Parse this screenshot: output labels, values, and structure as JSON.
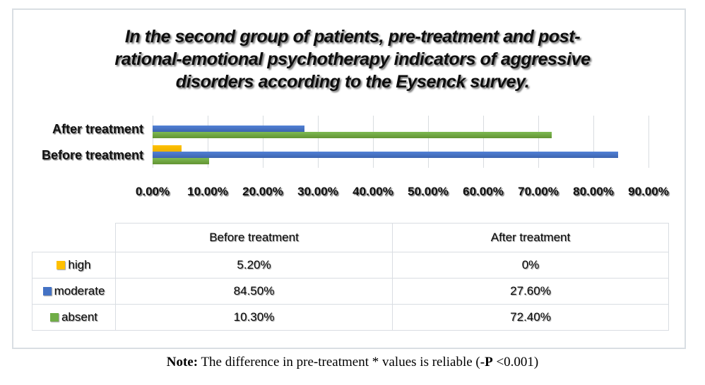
{
  "title": "In the second group of patients, pre-treatment and post-\nrational-emotional psychotherapy indicators of aggressive\ndisorders according to the Eysenck survey.",
  "chart_data": {
    "type": "bar",
    "orientation": "horizontal",
    "title": "In the second group of patients, pre-treatment and post-rational-emotional psychotherapy indicators of aggressive disorders according to the Eysenck survey.",
    "categories": [
      "After treatment",
      "Before treatment"
    ],
    "series": [
      {
        "name": "high",
        "color": "#FFC000",
        "color_top": "#FFC least",
        "color_bottom": "#EDB200",
        "values": [
          0,
          5.2
        ]
      },
      {
        "name": "moderate",
        "color": "#4472C4",
        "color_top": "#5181D6",
        "color_bottom": "#3D64AF",
        "values": [
          27.6,
          84.5
        ]
      },
      {
        "name": "absent",
        "color": "#70AD47",
        "color_top": "#7EBA53",
        "color_bottom": "#629432",
        "values": [
          72.4,
          10.3
        ]
      }
    ],
    "xlim": [
      0,
      90
    ],
    "x_ticks": [
      "0.00%",
      "10.00%",
      "20.00%",
      "30.00%",
      "40.00%",
      "50.00%",
      "60.00%",
      "70.00%",
      "80.00%",
      "90.00%"
    ],
    "gridlines": true,
    "legend_position": "table-left-column"
  },
  "table": {
    "headers": [
      "",
      "Before treatment",
      "After treatment"
    ],
    "rows": [
      {
        "label": "high",
        "color": "#FFC000",
        "before": "5.20%",
        "after": "0%"
      },
      {
        "label": "moderate",
        "color": "#4472C4",
        "before": "84.50%",
        "after": "27.60%"
      },
      {
        "label": "absent",
        "color": "#70AD47",
        "before": "10.30%",
        "after": "72.40%"
      }
    ]
  },
  "note": {
    "label": "Note:",
    "text_before_p": " The difference in pre-treatment * values is reliable (",
    "p_label": "-P",
    "text_after_p": " <0.001)"
  }
}
